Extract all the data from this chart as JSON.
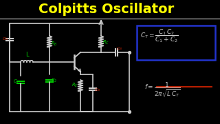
{
  "bg_color": "#000000",
  "title": "Colpitts Oscillator",
  "title_color": "#ffff00",
  "title_fontsize": 14,
  "circuit_color": "#cccccc",
  "green_color": "#00cc00",
  "red_color": "#cc2200",
  "formula_box_color": "#2233cc",
  "formula_text_color": "#ffffff",
  "formula_red_color": "#cc2200"
}
